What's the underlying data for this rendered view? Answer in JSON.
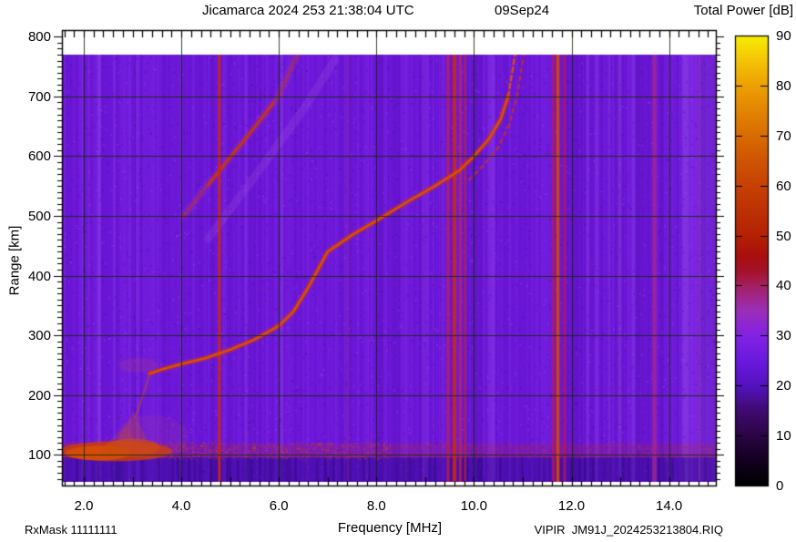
{
  "header": {
    "title": "Jicamarca 2024 253 21:38:04 UTC",
    "date": "09Sep24"
  },
  "colorbar": {
    "title": "Total Power [dB]",
    "min": 0,
    "max": 90,
    "tick_values": [
      90,
      80,
      70,
      60,
      50,
      40,
      30,
      20,
      10,
      0
    ],
    "tick_labels": [
      "90",
      "80",
      "70",
      "60",
      "50",
      "40",
      "30",
      "20",
      "10",
      "0"
    ],
    "gradient": [
      {
        "v": 0,
        "c": "#000000"
      },
      {
        "v": 5,
        "c": "#120020"
      },
      {
        "v": 10,
        "c": "#2c0545"
      },
      {
        "v": 15,
        "c": "#400a70"
      },
      {
        "v": 20,
        "c": "#5512c0"
      },
      {
        "v": 25,
        "c": "#6a1ade"
      },
      {
        "v": 30,
        "c": "#8322e2"
      },
      {
        "v": 35,
        "c": "#9b2fb8"
      },
      {
        "v": 40,
        "c": "#a51f62"
      },
      {
        "v": 43,
        "c": "#a41227"
      },
      {
        "v": 46,
        "c": "#a90f0e"
      },
      {
        "v": 50,
        "c": "#b52104"
      },
      {
        "v": 55,
        "c": "#bd3104"
      },
      {
        "v": 60,
        "c": "#c64104"
      },
      {
        "v": 65,
        "c": "#cf5404"
      },
      {
        "v": 70,
        "c": "#d96c02"
      },
      {
        "v": 75,
        "c": "#e38502"
      },
      {
        "v": 80,
        "c": "#eda102"
      },
      {
        "v": 85,
        "c": "#f4c406"
      },
      {
        "v": 90,
        "c": "#f8ee00"
      }
    ]
  },
  "axes": {
    "x": {
      "label": "Frequency [MHz]",
      "tick_values": [
        2,
        4,
        6,
        8,
        10,
        12,
        14
      ],
      "tick_labels": [
        "2.0",
        "4.0",
        "6.0",
        "8.0",
        "10.0",
        "12.0",
        "14.0"
      ],
      "range_mhz": [
        1.55,
        14.95
      ],
      "minor_tick_step_mhz": 0.2
    },
    "y": {
      "label": "Range [km]",
      "tick_values": [
        800,
        700,
        600,
        500,
        400,
        300,
        200,
        100
      ],
      "tick_labels": [
        "800",
        "700",
        "600",
        "500",
        "400",
        "300",
        "200",
        "100"
      ],
      "range_km": [
        49,
        811
      ],
      "minor_tick_step_km": 10
    }
  },
  "footer": {
    "left": "RxMask 11111111",
    "right": "VIPIR  JM91J_2024253213804.RIQ"
  },
  "chart_data": {
    "type": "heatmap",
    "title": "Jicamarca 2024 253 21:38:04 UTC",
    "date": "09Sep24",
    "station": "Jicamarca",
    "instrument": "VIPIR",
    "xlabel": "Frequency [MHz]",
    "ylabel": "Range [km]",
    "zlabel": "Total Power [dB]",
    "xlim": [
      1.55,
      14.95
    ],
    "ylim": [
      49,
      811
    ],
    "zlim": [
      0,
      90
    ],
    "grid": true,
    "background_db": 22,
    "data_extent": {
      "freq_mhz": [
        1.55,
        14.95
      ],
      "range_km": [
        55,
        770
      ]
    },
    "colors": {
      "background": "#6d17da",
      "below_e_strip": "#4c0fb8",
      "grid": "#15330a",
      "frame": "#000000",
      "trace_core": "#df5200",
      "trace_mid": "#cd3704",
      "rfi_red": "#cf2a04",
      "rfi_crimson": "#bd1f4a",
      "rfi_magenta": "#a92a90",
      "e_region": "#cf3c02"
    },
    "critical_frequency_mhz_approx": 10.9,
    "f_trace_o_mode": {
      "dashed_above_km": 700,
      "points": [
        [
          3.35,
          236
        ],
        [
          3.6,
          243
        ],
        [
          4.0,
          252
        ],
        [
          4.5,
          262
        ],
        [
          5.0,
          276
        ],
        [
          5.5,
          293
        ],
        [
          6.0,
          316
        ],
        [
          6.3,
          340
        ],
        [
          6.6,
          380
        ],
        [
          7.0,
          440
        ],
        [
          7.5,
          468
        ],
        [
          8.0,
          492
        ],
        [
          8.6,
          522
        ],
        [
          9.2,
          550
        ],
        [
          9.7,
          576
        ],
        [
          10.0,
          600
        ],
        [
          10.3,
          628
        ],
        [
          10.55,
          662
        ],
        [
          10.7,
          700
        ],
        [
          10.8,
          748
        ],
        [
          10.88,
          795
        ],
        [
          10.92,
          820
        ]
      ]
    },
    "f_trace_x_mode": {
      "dashed": true,
      "points": [
        [
          9.9,
          560
        ],
        [
          10.2,
          585
        ],
        [
          10.5,
          615
        ],
        [
          10.72,
          652
        ],
        [
          10.88,
          700
        ],
        [
          10.98,
          748
        ],
        [
          11.06,
          795
        ],
        [
          11.1,
          820
        ]
      ]
    },
    "leading_cusp": [
      [
        3.05,
        162
      ],
      [
        3.18,
        192
      ],
      [
        3.28,
        216
      ],
      [
        3.35,
        236
      ]
    ],
    "second_hop_trace": {
      "points": [
        [
          4.05,
          500
        ],
        [
          4.5,
          548
        ],
        [
          5.0,
          598
        ],
        [
          5.5,
          648
        ],
        [
          6.0,
          702
        ],
        [
          6.35,
          765
        ],
        [
          6.5,
          800
        ]
      ],
      "bright_segment": [
        [
          4.55,
          552
        ],
        [
          5.0,
          598
        ],
        [
          5.5,
          648
        ],
        [
          5.88,
          688
        ]
      ],
      "faint_parallel": [
        [
          4.55,
          462
        ],
        [
          5.5,
          565
        ],
        [
          6.5,
          678
        ],
        [
          7.15,
          762
        ]
      ]
    },
    "e_region": {
      "freq_span_mhz": [
        2.0,
        3.45
      ],
      "range_km": [
        95,
        140
      ],
      "fuzz_top_km": 175,
      "scatter_band_km": [
        95,
        115
      ],
      "peak_db_approx": 60
    },
    "rfi_lines": [
      {
        "f_mhz": 4.78,
        "width_mhz": 0.05,
        "color": "#cf2a04",
        "alpha": 0.95,
        "strength": "strong"
      },
      {
        "f_mhz": 7.42,
        "width_mhz": 0.04,
        "color": "#b03880",
        "alpha": 0.3,
        "strength": "faint"
      },
      {
        "f_mhz": 8.6,
        "width_mhz": 0.04,
        "color": "#9a40d0",
        "alpha": 0.18,
        "strength": "faint"
      },
      {
        "f_mhz": 8.97,
        "width_mhz": 0.04,
        "color": "#a040d0",
        "alpha": 0.28,
        "strength": "faint"
      },
      {
        "f_mhz": 9.47,
        "width_mhz": 0.06,
        "color": "#bd1f4a",
        "alpha": 0.75,
        "strength": "medium"
      },
      {
        "f_mhz": 9.6,
        "width_mhz": 0.07,
        "color": "#cf2a04",
        "alpha": 0.9,
        "strength": "strong"
      },
      {
        "f_mhz": 9.72,
        "width_mhz": 0.05,
        "color": "#c02545",
        "alpha": 0.8,
        "strength": "medium"
      },
      {
        "f_mhz": 9.82,
        "width_mhz": 0.04,
        "color": "#cf2a04",
        "alpha": 0.65,
        "strength": "medium"
      },
      {
        "f_mhz": 11.63,
        "width_mhz": 0.05,
        "color": "#bd174a",
        "alpha": 0.88,
        "strength": "strong"
      },
      {
        "f_mhz": 11.72,
        "width_mhz": 0.07,
        "color": "#d14a04",
        "alpha": 0.9,
        "strength": "strong"
      },
      {
        "f_mhz": 11.86,
        "width_mhz": 0.05,
        "color": "#bd174a",
        "alpha": 0.8,
        "strength": "strong"
      },
      {
        "f_mhz": 13.7,
        "width_mhz": 0.09,
        "color": "#a92a90",
        "alpha": 0.7,
        "strength": "medium"
      },
      {
        "f_mhz": 14.62,
        "width_mhz": 0.04,
        "color": "#a93aa0",
        "alpha": 0.38,
        "strength": "faint"
      }
    ],
    "light_columns": [
      {
        "f_mhz": 2.3,
        "width_mhz": 0.08,
        "alpha": 0.2
      },
      {
        "f_mhz": 2.62,
        "width_mhz": 0.05,
        "alpha": 0.14
      },
      {
        "f_mhz": 3.1,
        "width_mhz": 0.05,
        "alpha": 0.13
      },
      {
        "f_mhz": 5.32,
        "width_mhz": 0.04,
        "alpha": 0.1
      },
      {
        "f_mhz": 6.05,
        "width_mhz": 0.04,
        "alpha": 0.1
      },
      {
        "f_mhz": 10.35,
        "width_mhz": 0.16,
        "alpha": 0.16
      },
      {
        "f_mhz": 12.33,
        "width_mhz": 0.06,
        "alpha": 0.2
      },
      {
        "f_mhz": 12.52,
        "width_mhz": 0.08,
        "alpha": 0.18
      },
      {
        "f_mhz": 12.77,
        "width_mhz": 0.06,
        "alpha": 0.16
      },
      {
        "f_mhz": 12.99,
        "width_mhz": 0.08,
        "alpha": 0.2
      },
      {
        "f_mhz": 13.27,
        "width_mhz": 0.08,
        "alpha": 0.18
      },
      {
        "f_mhz": 14.35,
        "width_mhz": 0.1,
        "alpha": 0.2
      },
      {
        "f_mhz": 14.62,
        "width_mhz": 0.7,
        "alpha": 0.14
      }
    ]
  }
}
